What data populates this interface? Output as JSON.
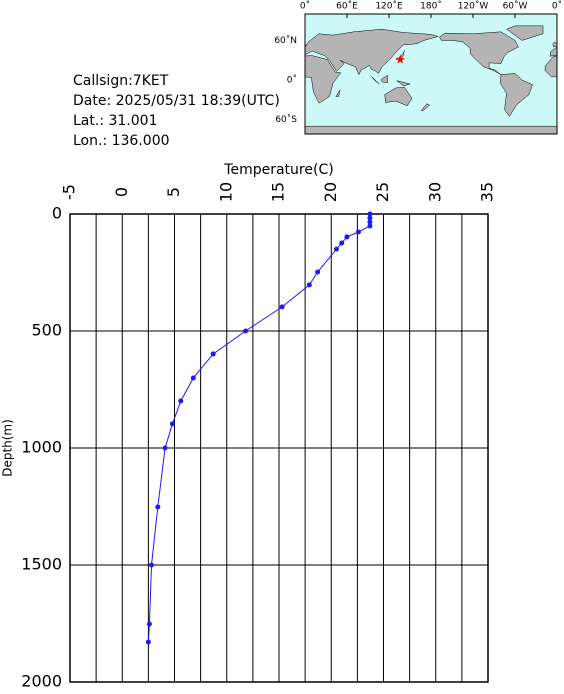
{
  "info": [
    "Callsign:7KET",
    "Date:  2025/05/31 18:39(UTC)",
    "Lat.:  31.001",
    "Lon.:  136.000"
  ],
  "map": {
    "lon_labels": [
      "0˚",
      "60˚E",
      "120˚E",
      "180˚",
      "120˚W",
      "60˚W",
      "0˚"
    ],
    "lat_labels": [
      "60˚N",
      "0˚",
      "60˚S"
    ],
    "lat": 31.001,
    "lon": 136.0
  },
  "chart_data": {
    "type": "line",
    "x_label": "Temperature(C)",
    "y_label": "Depth(m)",
    "xlim": [
      -5,
      35
    ],
    "xticks": [
      -5,
      0,
      5,
      10,
      15,
      20,
      25,
      30,
      35
    ],
    "ylim": [
      0,
      2000
    ],
    "yticks": [
      0,
      500,
      1000,
      1500,
      2000
    ],
    "y_inverted": true,
    "grid": true,
    "series": [
      {
        "color": "#1a1aff",
        "x": [
          23.7,
          23.7,
          23.7,
          23.7,
          22.6,
          21.5,
          21.0,
          20.5,
          18.7,
          17.9,
          15.3,
          11.8,
          8.7,
          6.8,
          5.6,
          4.8,
          4.1,
          3.4,
          2.8,
          2.6,
          2.5
        ],
        "values": [
          0,
          17,
          34,
          51,
          77,
          98,
          124,
          150,
          248,
          303,
          397,
          500,
          598,
          701,
          799,
          897,
          1000,
          1252,
          1500,
          1752,
          1829
        ]
      }
    ]
  }
}
